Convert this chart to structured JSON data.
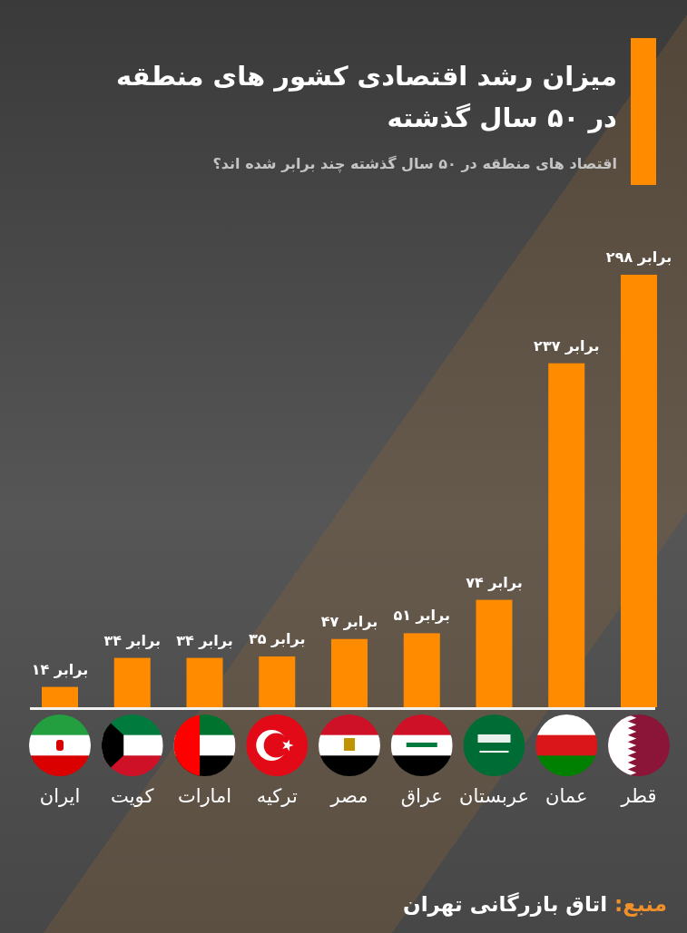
{
  "chart_data": {
    "type": "bar",
    "title": "میزان رشد اقتصادی کشور های منطقه در ۵۰ سال گذشته",
    "subtitle": "اقتصاد های منطقه در ۵۰ سال گذشته چند برابر شده اند؟",
    "categories": [
      "ایران",
      "کویت",
      "امارات",
      "ترکیه",
      "مصر",
      "عراق",
      "عربستان",
      "عمان",
      "قطر"
    ],
    "values": [
      14,
      34,
      34,
      35,
      47,
      51,
      74,
      237,
      298
    ],
    "value_labels": [
      "۱۴ برابر",
      "۳۴ برابر",
      "۳۴ برابر",
      "۳۵ برابر",
      "۴۷ برابر",
      "۵۱ برابر",
      "۷۴ برابر",
      "۲۳۷ برابر",
      "۲۹۸ برابر"
    ],
    "color": "#ff8c00",
    "tick_labels": "x",
    "annotations": [
      "منبع: اتاق بازرگانی تهران"
    ]
  }
}
